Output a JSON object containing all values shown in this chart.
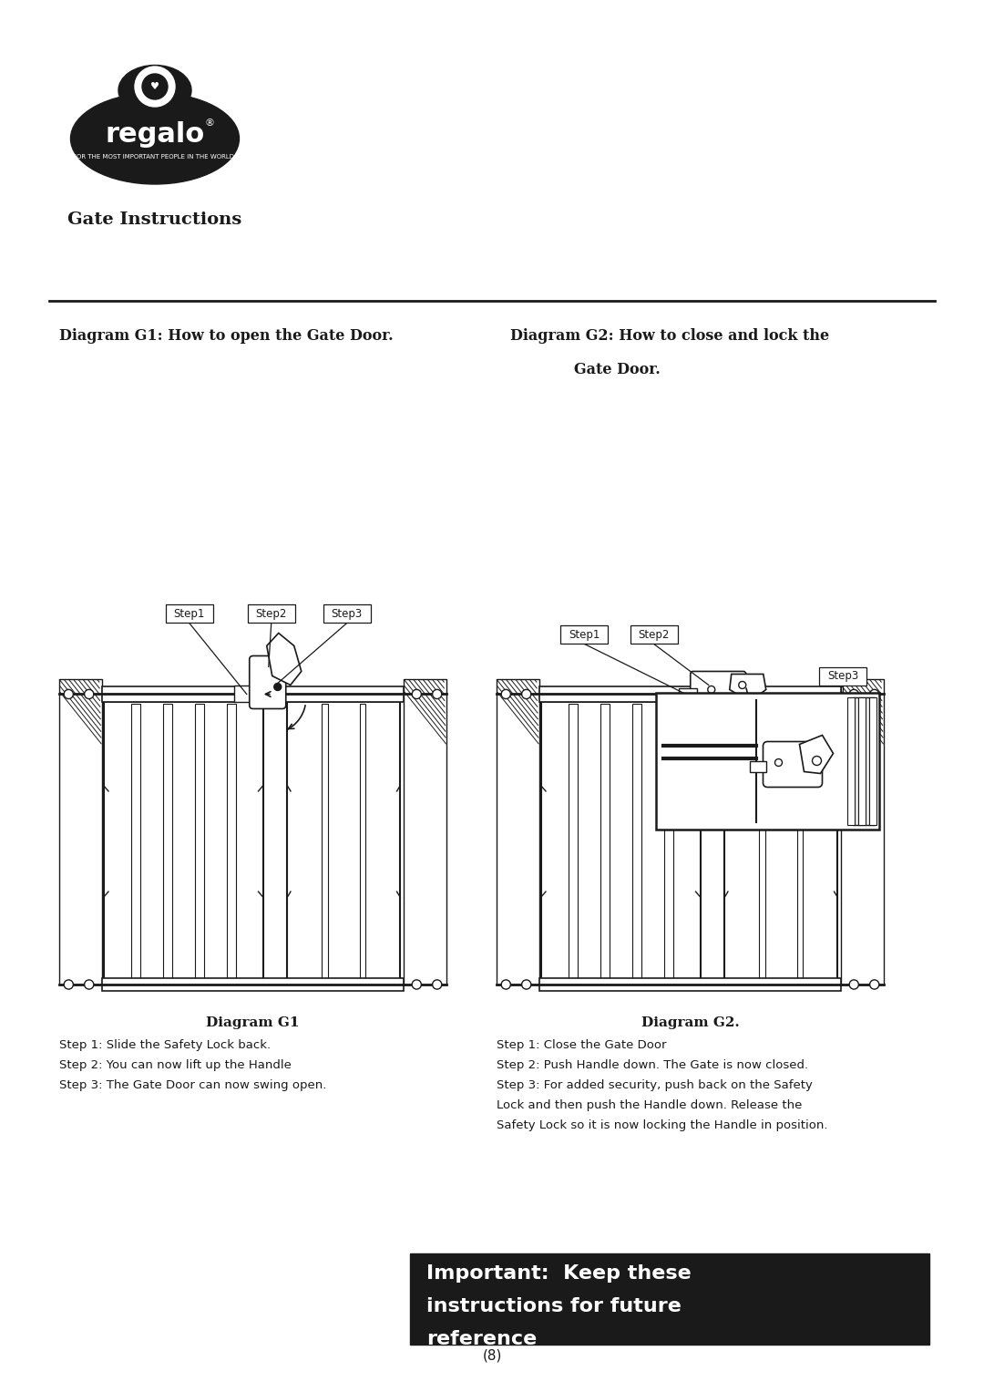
{
  "page_width": 10.8,
  "page_height": 15.27,
  "bg_color": "#ffffff",
  "logo_text": "regalo",
  "logo_subtext": "FOR THE MOST IMPORTANT PEOPLE IN THE WORLD.",
  "gate_instructions_text": "Gate Instructions",
  "header_box_color": "#1a1a1a",
  "header_text_line1": "Important:  Keep these",
  "header_text_line2": "instructions for future",
  "header_text_line3": "reference",
  "diagram1_title": "Diagram G1: How to open the Gate Door.",
  "diagram2_title_line1": "Diagram G2: How to close and lock the",
  "diagram2_title_line2": "Gate Door.",
  "diagram1_caption": "Diagram G1",
  "diagram2_caption": "Diagram G2.",
  "diagram1_steps": [
    "Step 1: Slide the Safety Lock back.",
    "Step 2: You can now lift up the Handle",
    "Step 3: The Gate Door can now swing open."
  ],
  "diagram2_steps": [
    "Step 1: Close the Gate Door",
    "Step 2: Push Handle down. The Gate is now closed.",
    "Step 3: For added security, push back on the Safety",
    "Lock and then push the Handle down. Release the",
    "Safety Lock so it is now locking the Handle in position."
  ],
  "page_number": "(8)",
  "text_color": "#1a1a1a",
  "line_color": "#1a1a1a"
}
